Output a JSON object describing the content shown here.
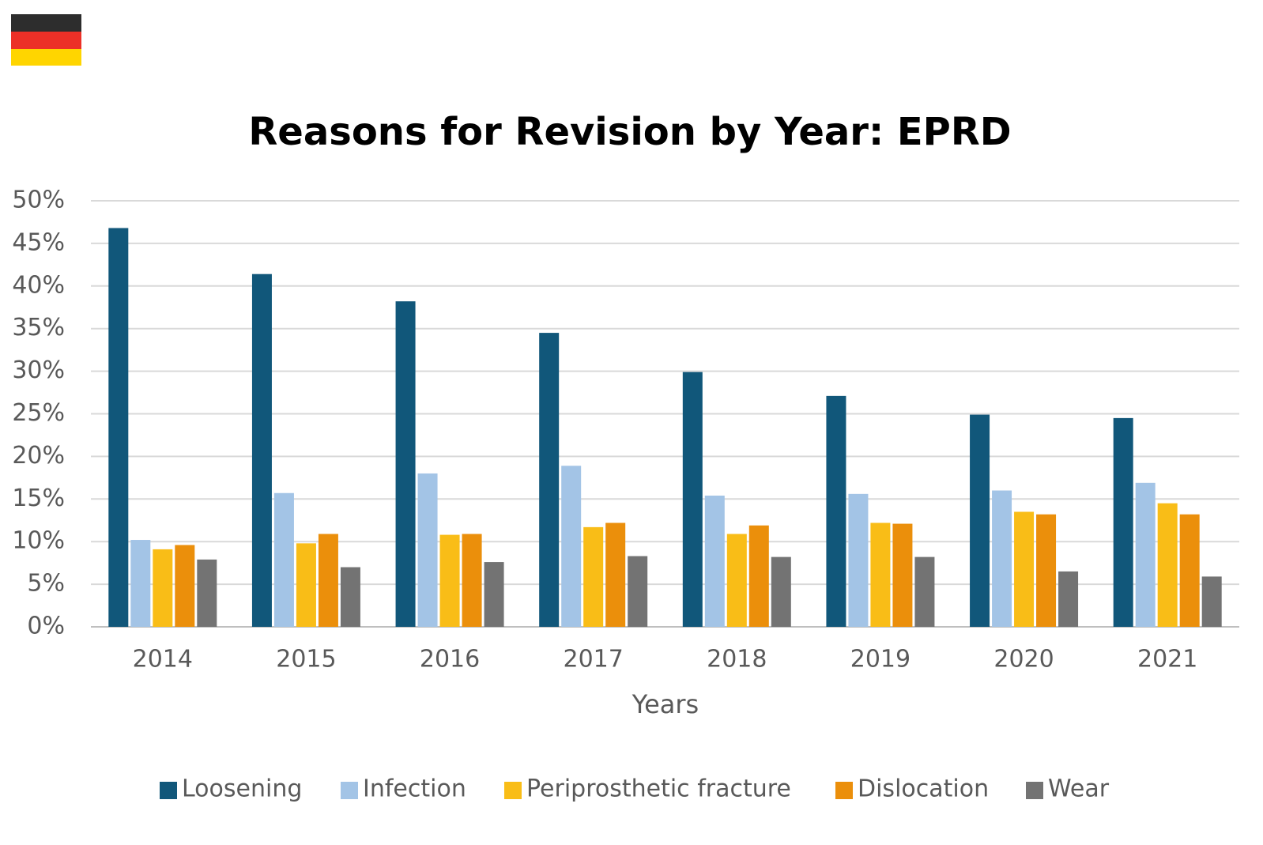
{
  "chart_data": {
    "type": "bar",
    "title": "Reasons for Revision by Year: EPRD",
    "x_label": "Years",
    "categories": [
      "2014",
      "2015",
      "2016",
      "2017",
      "2018",
      "2019",
      "2020",
      "2021"
    ],
    "series": [
      {
        "name": "Loosening",
        "color": "#11577a",
        "values": [
          46.8,
          41.4,
          38.2,
          34.5,
          29.9,
          27.1,
          24.9,
          24.5
        ]
      },
      {
        "name": "Infection",
        "color": "#a3c4e6",
        "values": [
          10.2,
          15.7,
          18.0,
          18.9,
          15.4,
          15.6,
          16.0,
          16.9
        ]
      },
      {
        "name": "Periprosthetic fracture",
        "color": "#f9bd17",
        "values": [
          9.1,
          9.8,
          10.8,
          11.7,
          10.9,
          12.2,
          13.5,
          14.5
        ]
      },
      {
        "name": "Dislocation",
        "color": "#eb8f0b",
        "values": [
          9.6,
          10.9,
          10.9,
          12.2,
          11.9,
          12.1,
          13.2,
          13.2
        ]
      },
      {
        "name": "Wear",
        "color": "#737373",
        "values": [
          7.9,
          7.0,
          7.6,
          8.3,
          8.2,
          8.2,
          6.5,
          5.9
        ]
      }
    ],
    "ylim": [
      0,
      50
    ],
    "yticks": [
      {
        "value": 0,
        "label": "0%"
      },
      {
        "value": 5,
        "label": "5%"
      },
      {
        "value": 10,
        "label": "10%"
      },
      {
        "value": 15,
        "label": "15%"
      },
      {
        "value": 20,
        "label": "20%"
      },
      {
        "value": 25,
        "label": "25%"
      },
      {
        "value": 30,
        "label": "30%"
      },
      {
        "value": 35,
        "label": "35%"
      },
      {
        "value": 40,
        "label": "40%"
      },
      {
        "value": 45,
        "label": "45%"
      },
      {
        "value": 50,
        "label": "50%"
      }
    ],
    "grid": true,
    "legend": "bottom"
  }
}
